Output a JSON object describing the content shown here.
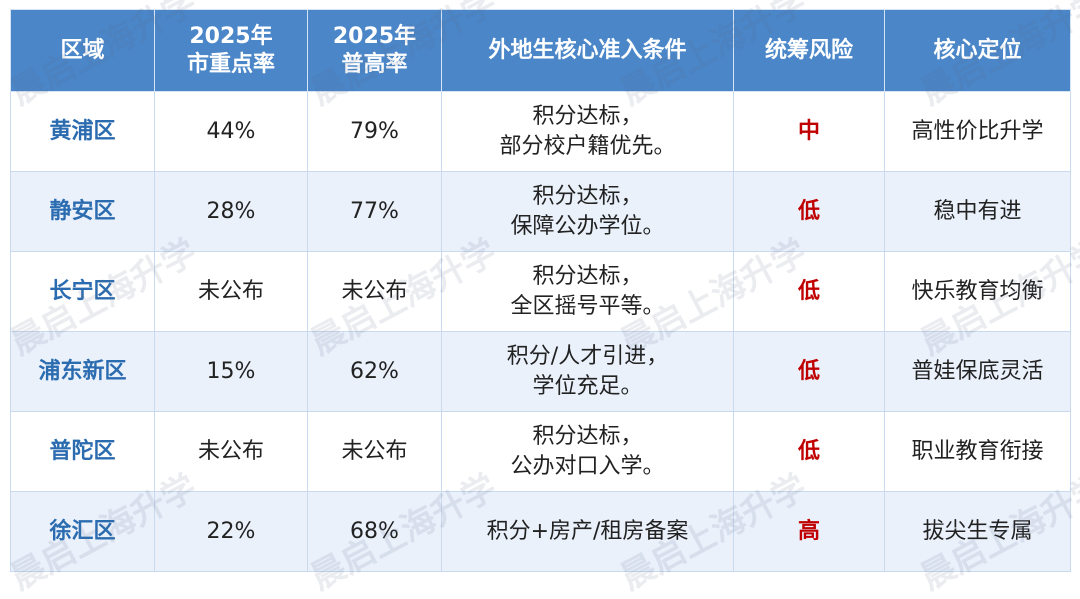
{
  "table": {
    "headers": [
      {
        "lines": [
          "区域"
        ]
      },
      {
        "lines": [
          "2025年",
          "市重点率"
        ]
      },
      {
        "lines": [
          "2025年",
          "普高率"
        ]
      },
      {
        "lines": [
          "外地生核心准入条件"
        ]
      },
      {
        "lines": [
          "统筹风险"
        ]
      },
      {
        "lines": [
          "核心定位"
        ]
      }
    ],
    "rows": [
      {
        "district": "黄浦区",
        "key_rate": "44%",
        "high_rate": "79%",
        "conditions": [
          "积分达标，",
          "部分校户籍优先。"
        ],
        "risk": "中",
        "position": "高性价比升学"
      },
      {
        "district": "静安区",
        "key_rate": "28%",
        "high_rate": "77%",
        "conditions": [
          "积分达标，",
          "保障公办学位。"
        ],
        "risk": "低",
        "position": "稳中有进"
      },
      {
        "district": "长宁区",
        "key_rate": "未公布",
        "high_rate": "未公布",
        "conditions": [
          "积分达标，",
          "全区摇号平等。"
        ],
        "risk": "低",
        "position": "快乐教育均衡"
      },
      {
        "district": "浦东新区",
        "key_rate": "15%",
        "high_rate": "62%",
        "conditions": [
          "积分/人才引进，",
          "学位充足。"
        ],
        "risk": "低",
        "position": "普娃保底灵活"
      },
      {
        "district": "普陀区",
        "key_rate": "未公布",
        "high_rate": "未公布",
        "conditions": [
          "积分达标，",
          "公办对口入学。"
        ],
        "risk": "低",
        "position": "职业教育衔接"
      },
      {
        "district": "徐汇区",
        "key_rate": "22%",
        "high_rate": "68%",
        "conditions": [
          "积分+房产/租房备案"
        ],
        "risk": "高",
        "position": "拔尖生专属"
      }
    ]
  },
  "watermark": "晨启上海升学",
  "colors": {
    "header_bg": "#4a86c8",
    "district_text": "#2b6cb0",
    "risk_text": "#c00000",
    "alt_row_bg": "#eaf1fb"
  }
}
